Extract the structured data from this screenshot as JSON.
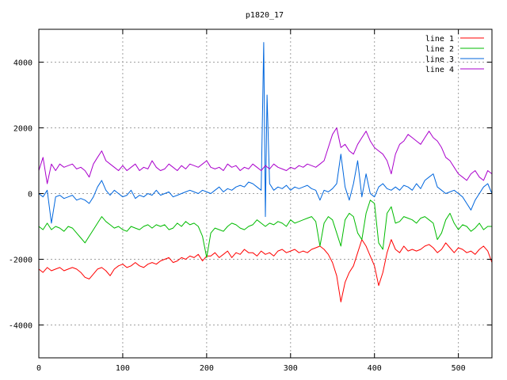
{
  "chart_data": {
    "type": "line",
    "title": "p1820_17",
    "xlabel": "",
    "ylabel": "",
    "xlim": [
      0,
      540
    ],
    "ylim": [
      -5000,
      5000
    ],
    "x_ticks": [
      0,
      100,
      200,
      300,
      400,
      500
    ],
    "y_ticks": [
      -4000,
      -2000,
      0,
      2000,
      4000
    ],
    "grid": true,
    "legend_position": "top-right",
    "series": [
      {
        "name": "line 1",
        "color": "#ff0000",
        "x": [
          0,
          5,
          10,
          15,
          20,
          25,
          30,
          35,
          40,
          45,
          50,
          55,
          60,
          65,
          70,
          75,
          80,
          85,
          90,
          95,
          100,
          105,
          110,
          115,
          120,
          125,
          130,
          135,
          140,
          145,
          150,
          155,
          160,
          165,
          170,
          175,
          180,
          185,
          190,
          195,
          200,
          205,
          210,
          215,
          220,
          225,
          230,
          235,
          240,
          245,
          250,
          255,
          260,
          265,
          270,
          275,
          280,
          285,
          290,
          295,
          300,
          305,
          310,
          315,
          320,
          325,
          330,
          335,
          340,
          345,
          350,
          355,
          360,
          365,
          370,
          375,
          380,
          385,
          390,
          395,
          400,
          405,
          410,
          415,
          420,
          425,
          430,
          435,
          440,
          445,
          450,
          455,
          460,
          465,
          470,
          475,
          480,
          485,
          490,
          495,
          500,
          505,
          510,
          515,
          520,
          525,
          530,
          535,
          540
        ],
        "values": [
          -2300,
          -2400,
          -2250,
          -2350,
          -2300,
          -2250,
          -2350,
          -2300,
          -2250,
          -2300,
          -2400,
          -2550,
          -2600,
          -2450,
          -2300,
          -2250,
          -2350,
          -2500,
          -2300,
          -2200,
          -2150,
          -2250,
          -2200,
          -2100,
          -2200,
          -2250,
          -2150,
          -2100,
          -2150,
          -2050,
          -2000,
          -1950,
          -2100,
          -2050,
          -1950,
          -2000,
          -1900,
          -1950,
          -1850,
          -2050,
          -1900,
          -1900,
          -1800,
          -1950,
          -1850,
          -1750,
          -1950,
          -1800,
          -1850,
          -1700,
          -1800,
          -1800,
          -1900,
          -1750,
          -1850,
          -1800,
          -1900,
          -1750,
          -1700,
          -1800,
          -1750,
          -1700,
          -1800,
          -1750,
          -1800,
          -1700,
          -1650,
          -1600,
          -1700,
          -1850,
          -2100,
          -2500,
          -3300,
          -2700,
          -2400,
          -2200,
          -1800,
          -1400,
          -1600,
          -1900,
          -2200,
          -2800,
          -2400,
          -1800,
          -1400,
          -1700,
          -1800,
          -1600,
          -1750,
          -1700,
          -1750,
          -1700,
          -1600,
          -1550,
          -1650,
          -1800,
          -1700,
          -1500,
          -1650,
          -1800,
          -1650,
          -1700,
          -1800,
          -1750,
          -1850,
          -1700,
          -1600,
          -1750,
          -2100
        ],
        "note": ""
      },
      {
        "name": "line 2",
        "color": "#00bb00",
        "x": [
          0,
          5,
          10,
          15,
          20,
          25,
          30,
          35,
          40,
          45,
          50,
          55,
          60,
          65,
          70,
          75,
          80,
          85,
          90,
          95,
          100,
          105,
          110,
          115,
          120,
          125,
          130,
          135,
          140,
          145,
          150,
          155,
          160,
          165,
          170,
          175,
          180,
          185,
          190,
          195,
          200,
          205,
          210,
          215,
          220,
          225,
          230,
          235,
          240,
          245,
          250,
          255,
          260,
          265,
          270,
          275,
          280,
          285,
          290,
          295,
          300,
          305,
          310,
          315,
          320,
          325,
          330,
          335,
          340,
          345,
          350,
          355,
          360,
          365,
          370,
          375,
          380,
          385,
          390,
          395,
          400,
          405,
          410,
          415,
          420,
          425,
          430,
          435,
          440,
          445,
          450,
          455,
          460,
          465,
          470,
          475,
          480,
          485,
          490,
          495,
          500,
          505,
          510,
          515,
          520,
          525,
          530,
          535,
          540
        ],
        "values": [
          -1000,
          -1100,
          -900,
          -1100,
          -1000,
          -1050,
          -1150,
          -1000,
          -1050,
          -1200,
          -1350,
          -1500,
          -1300,
          -1100,
          -900,
          -700,
          -850,
          -950,
          -1050,
          -1000,
          -1100,
          -1150,
          -1000,
          -1050,
          -1100,
          -1000,
          -950,
          -1050,
          -950,
          -1000,
          -950,
          -1100,
          -1050,
          -900,
          -1000,
          -850,
          -950,
          -900,
          -1000,
          -1300,
          -1950,
          -1200,
          -1050,
          -1100,
          -1150,
          -1000,
          -900,
          -950,
          -1050,
          -1100,
          -1000,
          -950,
          -800,
          -900,
          -1000,
          -900,
          -950,
          -850,
          -900,
          -1000,
          -800,
          -900,
          -850,
          -800,
          -750,
          -700,
          -850,
          -1600,
          -900,
          -700,
          -800,
          -1200,
          -1600,
          -800,
          -600,
          -700,
          -1200,
          -1400,
          -600,
          -200,
          -300,
          -1500,
          -1700,
          -600,
          -400,
          -900,
          -850,
          -700,
          -750,
          -800,
          -900,
          -750,
          -700,
          -800,
          -900,
          -1400,
          -1200,
          -800,
          -600,
          -900,
          -1100,
          -950,
          -1000,
          -1150,
          -1050,
          -900,
          -1100,
          -1000,
          -1000
        ],
        "note": ""
      },
      {
        "name": "line 3",
        "color": "#0066dd",
        "x": [
          0,
          5,
          10,
          15,
          20,
          25,
          30,
          35,
          40,
          45,
          50,
          55,
          60,
          65,
          70,
          75,
          80,
          85,
          90,
          95,
          100,
          105,
          110,
          115,
          120,
          125,
          130,
          135,
          140,
          145,
          150,
          155,
          160,
          165,
          170,
          175,
          180,
          185,
          190,
          195,
          200,
          205,
          210,
          215,
          220,
          225,
          230,
          235,
          240,
          245,
          250,
          255,
          260,
          265,
          268,
          270,
          272,
          275,
          280,
          285,
          290,
          295,
          300,
          305,
          310,
          315,
          320,
          325,
          330,
          335,
          340,
          345,
          350,
          355,
          360,
          365,
          370,
          375,
          380,
          385,
          390,
          395,
          400,
          405,
          410,
          415,
          420,
          425,
          430,
          435,
          440,
          445,
          450,
          455,
          460,
          465,
          470,
          475,
          480,
          485,
          490,
          495,
          500,
          505,
          510,
          515,
          520,
          525,
          530,
          535,
          540
        ],
        "values": [
          0,
          -100,
          100,
          -900,
          -100,
          -50,
          -150,
          -100,
          -50,
          -200,
          -150,
          -200,
          -300,
          -100,
          200,
          400,
          100,
          -50,
          100,
          0,
          -100,
          -50,
          100,
          -150,
          -50,
          -100,
          0,
          -50,
          100,
          -50,
          0,
          50,
          -100,
          -50,
          0,
          50,
          100,
          50,
          0,
          100,
          50,
          0,
          100,
          200,
          50,
          150,
          100,
          200,
          250,
          200,
          350,
          300,
          200,
          100,
          4600,
          -700,
          3000,
          300,
          100,
          200,
          150,
          250,
          100,
          200,
          150,
          200,
          250,
          150,
          100,
          -200,
          100,
          50,
          150,
          300,
          1200,
          200,
          -200,
          300,
          1000,
          -100,
          600,
          0,
          -100,
          200,
          300,
          150,
          100,
          200,
          100,
          250,
          200,
          100,
          300,
          150,
          400,
          500,
          600,
          200,
          100,
          0,
          50,
          100,
          0,
          -100,
          -300,
          -500,
          -200,
          0,
          200,
          300,
          0
        ],
        "note": ""
      },
      {
        "name": "line 4",
        "color": "#aa00cc",
        "x": [
          0,
          5,
          10,
          15,
          20,
          25,
          30,
          35,
          40,
          45,
          50,
          55,
          60,
          65,
          70,
          75,
          80,
          85,
          90,
          95,
          100,
          105,
          110,
          115,
          120,
          125,
          130,
          135,
          140,
          145,
          150,
          155,
          160,
          165,
          170,
          175,
          180,
          185,
          190,
          195,
          200,
          205,
          210,
          215,
          220,
          225,
          230,
          235,
          240,
          245,
          250,
          255,
          260,
          265,
          270,
          275,
          280,
          285,
          290,
          295,
          300,
          305,
          310,
          315,
          320,
          325,
          330,
          335,
          340,
          345,
          350,
          355,
          360,
          365,
          370,
          375,
          380,
          385,
          390,
          395,
          400,
          405,
          410,
          415,
          420,
          425,
          430,
          435,
          440,
          445,
          450,
          455,
          460,
          465,
          470,
          475,
          480,
          485,
          490,
          495,
          500,
          505,
          510,
          515,
          520,
          525,
          530,
          535,
          540
        ],
        "values": [
          700,
          1100,
          300,
          900,
          700,
          900,
          800,
          850,
          900,
          750,
          800,
          700,
          500,
          900,
          1100,
          1300,
          1000,
          900,
          800,
          700,
          850,
          700,
          800,
          900,
          700,
          800,
          750,
          1000,
          800,
          700,
          750,
          900,
          800,
          700,
          850,
          750,
          900,
          850,
          800,
          900,
          1000,
          800,
          750,
          800,
          700,
          900,
          800,
          850,
          700,
          800,
          750,
          900,
          800,
          700,
          850,
          750,
          900,
          800,
          750,
          700,
          800,
          750,
          850,
          800,
          900,
          850,
          800,
          900,
          1000,
          1400,
          1800,
          2000,
          1400,
          1500,
          1300,
          1200,
          1500,
          1700,
          1900,
          1600,
          1400,
          1300,
          1200,
          1000,
          600,
          1200,
          1500,
          1600,
          1800,
          1700,
          1600,
          1500,
          1700,
          1900,
          1700,
          1600,
          1400,
          1100,
          1000,
          800,
          600,
          500,
          400,
          600,
          700,
          500,
          400,
          700,
          600
        ],
        "note": ""
      }
    ]
  }
}
